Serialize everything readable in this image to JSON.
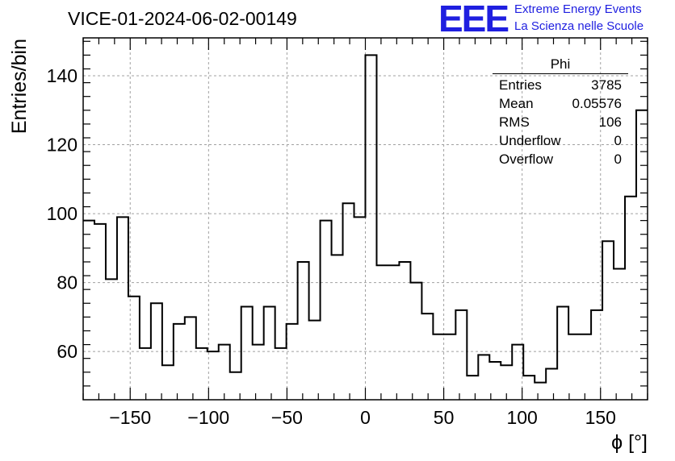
{
  "header": {
    "run_title": "VICE-01-2024-06-02-00149",
    "logo_text": "EEE",
    "logo_line1": "Extreme Energy Events",
    "logo_line2": "La Scienza nelle Scuole"
  },
  "stats_box": {
    "title": "Phi",
    "rows": [
      {
        "label": "Entries",
        "value": "3785"
      },
      {
        "label": "Mean",
        "value": "0.05576"
      },
      {
        "label": "RMS",
        "value": "106"
      },
      {
        "label": "Underflow",
        "value": "0"
      },
      {
        "label": "Overflow",
        "value": "0"
      }
    ]
  },
  "chart_data": {
    "type": "bar",
    "title": "VICE-01-2024-06-02-00149",
    "xlabel": "ϕ [°]",
    "ylabel": "Entries/bin",
    "xlim": [
      -180,
      180
    ],
    "ylim": [
      46,
      151
    ],
    "bin_edges_start": -180,
    "bin_width": 7.2,
    "values": [
      98,
      97,
      81,
      99,
      76,
      61,
      74,
      56,
      68,
      70,
      61,
      60,
      62,
      54,
      73,
      62,
      73,
      61,
      68,
      86,
      69,
      98,
      88,
      103,
      99,
      146,
      85,
      85,
      86,
      80,
      71,
      65,
      65,
      72,
      53,
      59,
      57,
      56,
      62,
      53,
      51,
      55,
      73,
      65,
      65,
      72,
      92,
      84,
      105,
      130
    ],
    "x_ticks": [
      -150,
      -100,
      -50,
      0,
      50,
      100,
      150
    ],
    "x_tick_labels": [
      "−150",
      "−100",
      "−50",
      "0",
      "50",
      "100",
      "150"
    ],
    "y_ticks": [
      60,
      80,
      100,
      120,
      140
    ],
    "y_tick_labels": [
      "60",
      "80",
      "100",
      "120",
      "140"
    ],
    "grid": true,
    "style_colors": {
      "line": "#000000",
      "grid": "#a0a0a0",
      "logo": "#1f1fe0"
    }
  }
}
